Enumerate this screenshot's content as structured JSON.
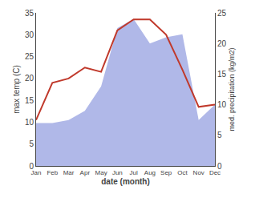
{
  "chart_data": {
    "type": "line",
    "xlabel": "date (month)",
    "ylabel": "max temp (C)",
    "y2label": "med. precipitation (kg/m2)",
    "categories": [
      "Jan",
      "Feb",
      "Mar",
      "Apr",
      "May",
      "Jun",
      "Jul",
      "Aug",
      "Sep",
      "Oct",
      "Nov",
      "Dec"
    ],
    "series": [
      {
        "type": "area",
        "axis": "y2",
        "color": "#b0b8e8",
        "values": [
          7.0,
          7.0,
          7.5,
          9.0,
          13.0,
          22.5,
          24.0,
          20.0,
          21.0,
          21.5,
          7.5,
          10.0
        ]
      },
      {
        "type": "line",
        "color": "#c0392b",
        "values": [
          10.5,
          19.0,
          20.0,
          22.5,
          21.5,
          31.0,
          33.5,
          33.5,
          30.0,
          22.0,
          13.5,
          14.0
        ]
      }
    ],
    "ylim": [
      0,
      35
    ],
    "yticks": [
      0,
      5,
      10,
      15,
      20,
      25,
      30,
      35
    ],
    "y2lim": [
      0,
      25
    ],
    "y2ticks": [
      0,
      5,
      10,
      15,
      20,
      25
    ],
    "grid": false
  }
}
